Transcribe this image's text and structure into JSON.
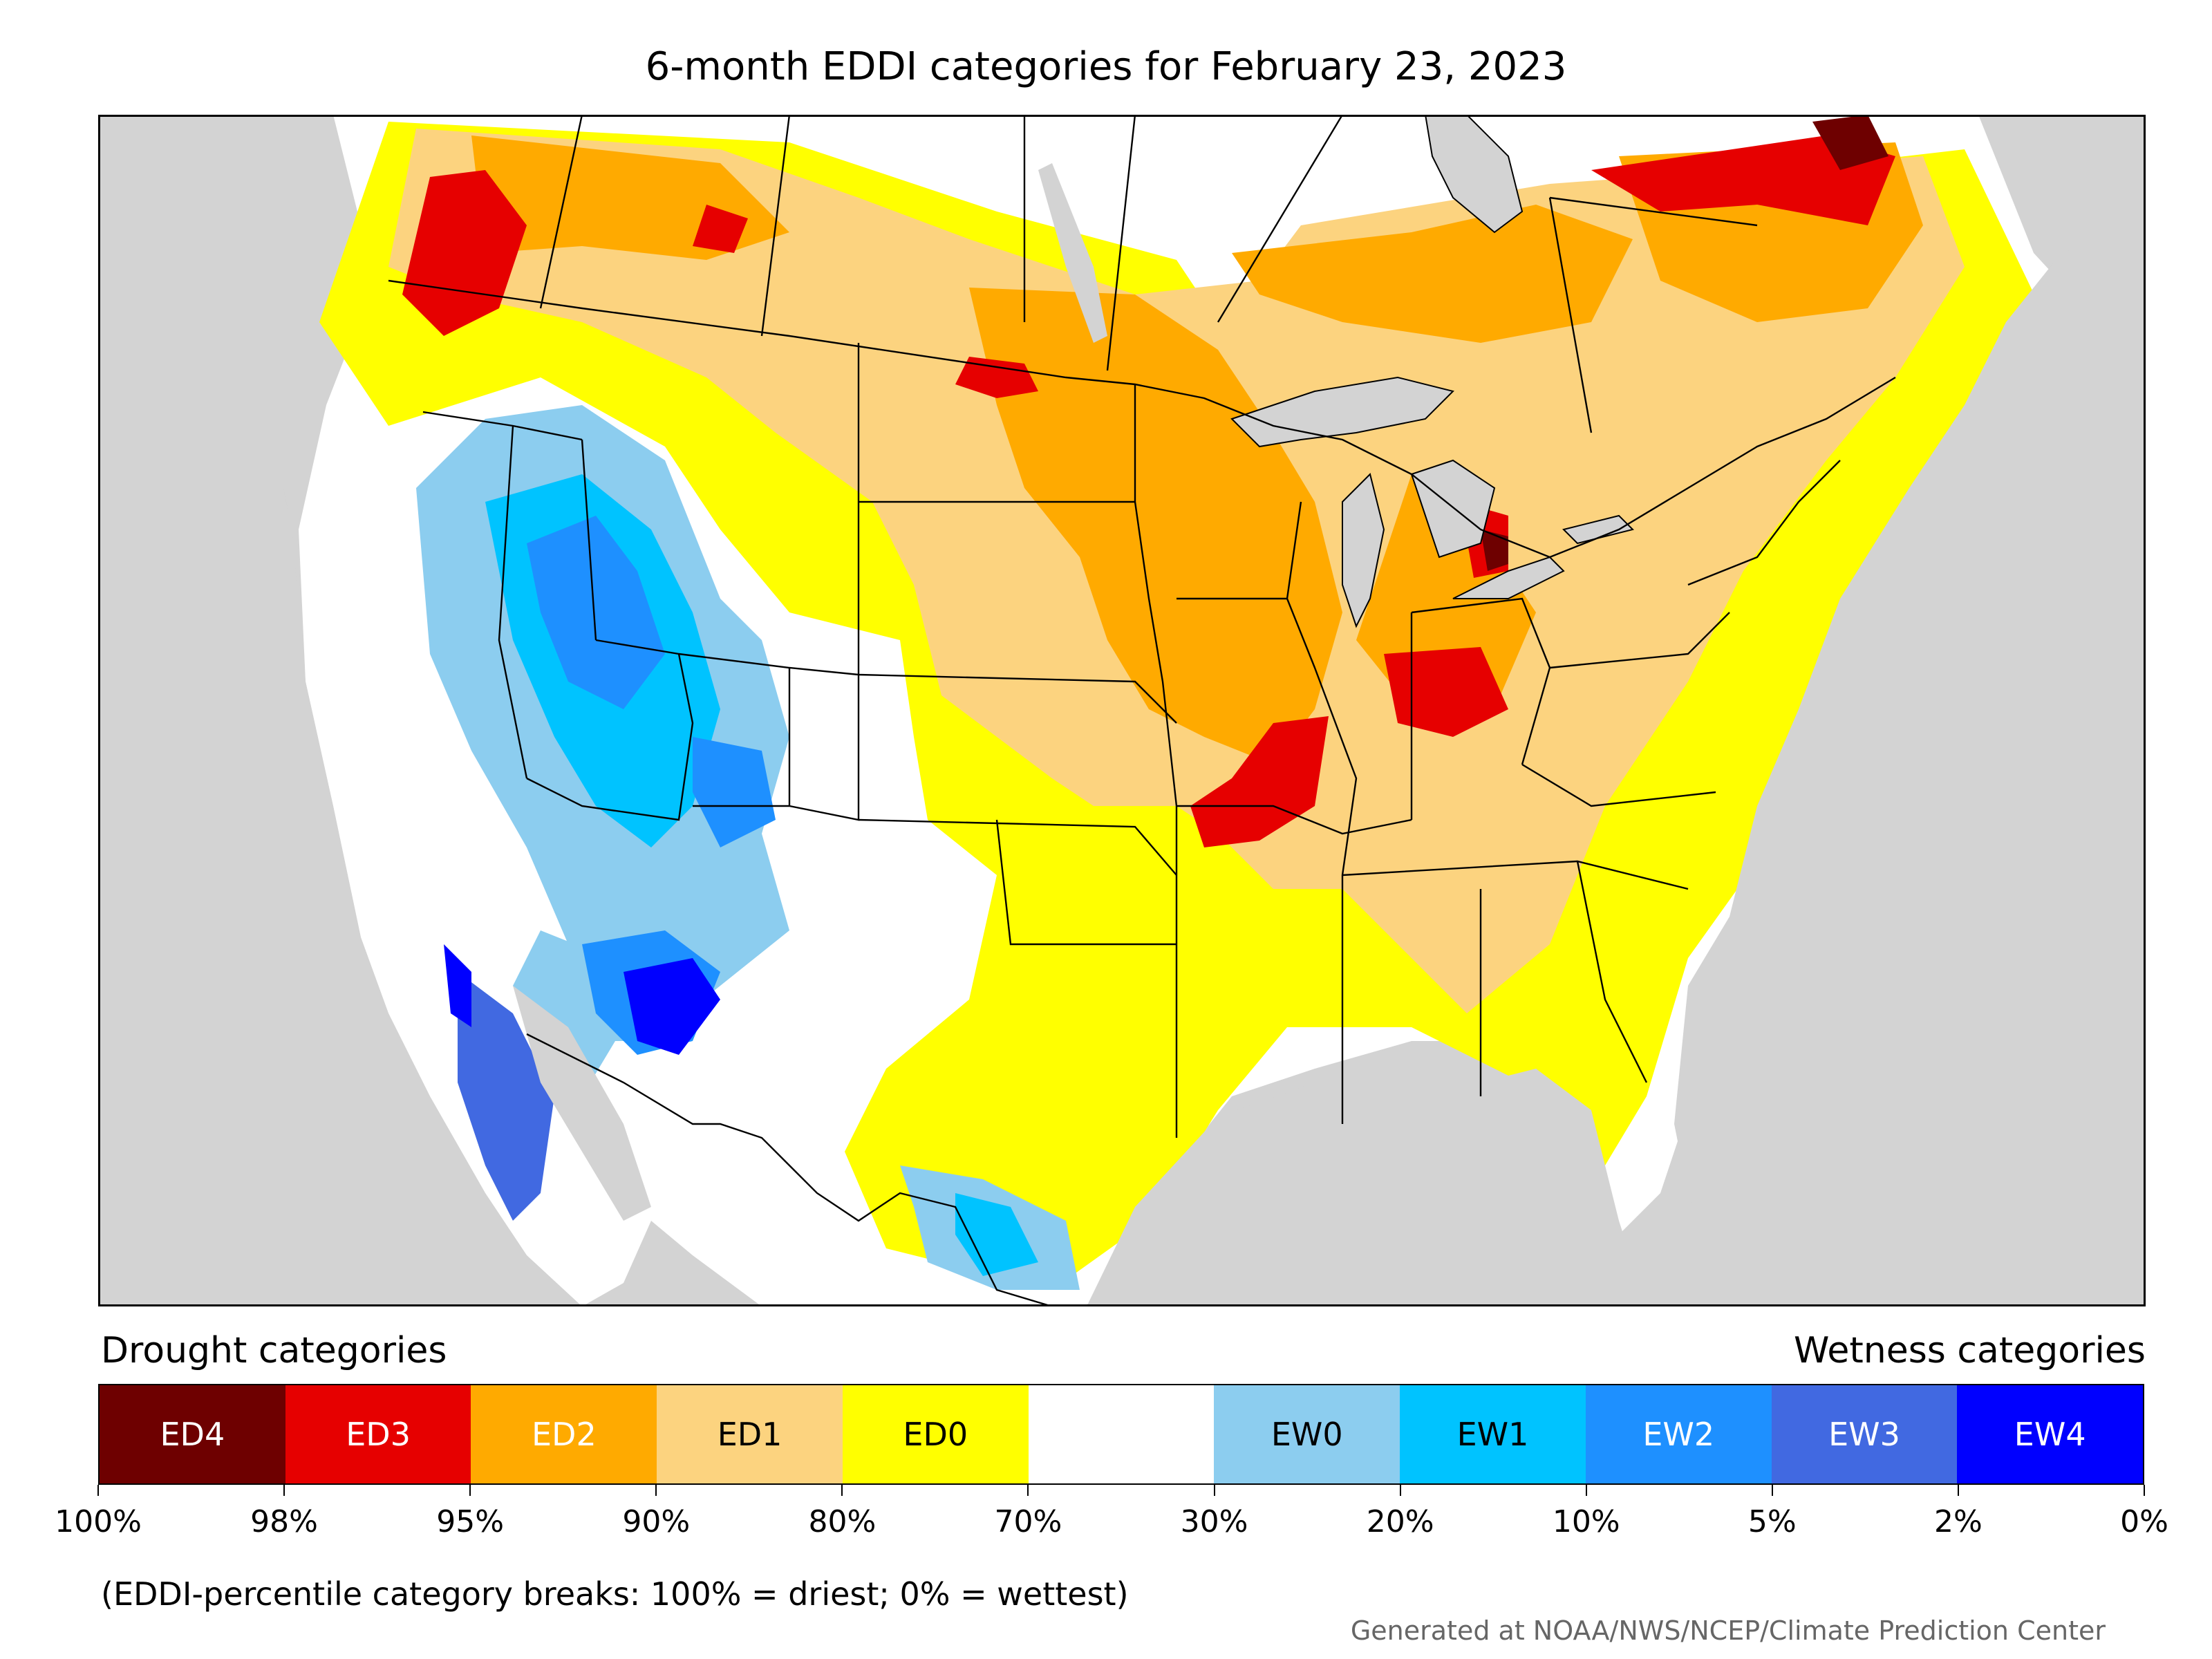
{
  "title": "6-month EDDI categories for February 23, 2023",
  "legend": {
    "drought_heading": "Drought categories",
    "wetness_heading": "Wetness categories",
    "categories": [
      {
        "label": "ED4",
        "color": "#6e0000",
        "text_color": "#ffffff"
      },
      {
        "label": "ED3",
        "color": "#e60000",
        "text_color": "#ffffff"
      },
      {
        "label": "ED2",
        "color": "#ffaa00",
        "text_color": "#ffffff"
      },
      {
        "label": "ED1",
        "color": "#fcd37f",
        "text_color": "#000000"
      },
      {
        "label": "ED0",
        "color": "#ffff00",
        "text_color": "#000000"
      },
      {
        "label": "",
        "color": "#ffffff",
        "text_color": "#000000"
      },
      {
        "label": "EW0",
        "color": "#8ccdef",
        "text_color": "#000000"
      },
      {
        "label": "EW1",
        "color": "#00c3ff",
        "text_color": "#000000"
      },
      {
        "label": "EW2",
        "color": "#1e90ff",
        "text_color": "#ffffff"
      },
      {
        "label": "EW3",
        "color": "#4169e1",
        "text_color": "#ffffff"
      },
      {
        "label": "EW4",
        "color": "#0000ff",
        "text_color": "#ffffff"
      }
    ],
    "tick_labels": [
      "100%",
      "98%",
      "95%",
      "90%",
      "80%",
      "70%",
      "30%",
      "20%",
      "10%",
      "5%",
      "2%",
      "0%"
    ]
  },
  "note": "(EDDI-percentile category breaks: 100% = driest; 0% = wettest)",
  "credit": "Generated at NOAA/NWS/NCEP/Climate Prediction Center",
  "map_colors": {
    "background_land": "#d3d3d3",
    "water_bodies": "#d3d3d3",
    "boundaries": "#000000"
  }
}
